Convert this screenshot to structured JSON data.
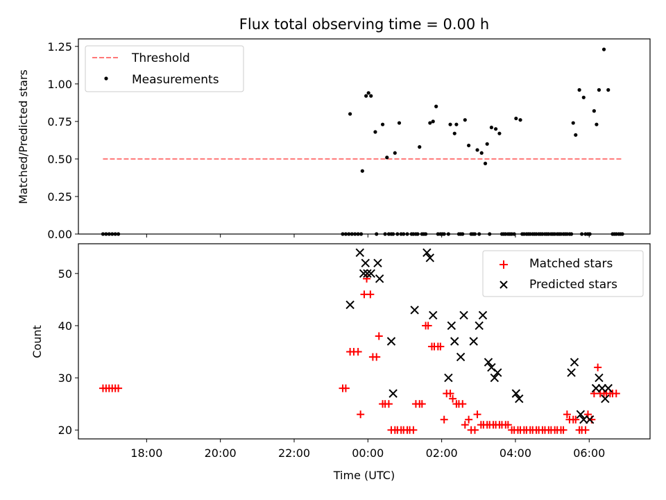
{
  "chart_data": [
    {
      "type": "scatter",
      "title": "Flux total observing time = 0.00 h",
      "xlabel": "",
      "ylabel": "Matched/Predicted stars",
      "ylim": [
        0,
        1.3
      ],
      "yticks": [
        0.0,
        0.25,
        0.5,
        0.75,
        1.0,
        1.25
      ],
      "ytick_labels": [
        "0.00",
        "0.25",
        "0.50",
        "0.75",
        "1.00",
        "1.25"
      ],
      "xlim": [
        "16:09",
        "07:39"
      ],
      "legend_position": "upper left",
      "series": [
        {
          "name": "Threshold",
          "kind": "dashed-line",
          "color": "#ff7777",
          "y": 0.5,
          "x_range": [
            "16:49",
            "06:54"
          ]
        },
        {
          "name": "Measurements",
          "kind": "points",
          "color": "#000000",
          "points": [
            [
              "16:49",
              0
            ],
            [
              "16:54",
              0
            ],
            [
              "16:59",
              0
            ],
            [
              "17:04",
              0
            ],
            [
              "17:09",
              0
            ],
            [
              "17:14",
              0
            ],
            [
              "23:19",
              0
            ],
            [
              "23:24",
              0
            ],
            [
              "23:29",
              0
            ],
            [
              "23:31",
              0.8
            ],
            [
              "23:34",
              0
            ],
            [
              "23:39",
              0
            ],
            [
              "23:44",
              0
            ],
            [
              "23:49",
              0
            ],
            [
              "23:51",
              0.42
            ],
            [
              "23:57",
              0.92
            ],
            [
              "00:01",
              0.94
            ],
            [
              "00:05",
              0.92
            ],
            [
              "00:12",
              0.68
            ],
            [
              "00:14",
              0
            ],
            [
              "00:24",
              0.73
            ],
            [
              "00:28",
              0
            ],
            [
              "00:31",
              0.51
            ],
            [
              "00:34",
              0
            ],
            [
              "00:38",
              0
            ],
            [
              "00:41",
              0
            ],
            [
              "00:44",
              0.54
            ],
            [
              "00:48",
              0
            ],
            [
              "00:51",
              0.74
            ],
            [
              "00:54",
              0
            ],
            [
              "00:58",
              0
            ],
            [
              "01:04",
              0
            ],
            [
              "01:11",
              0
            ],
            [
              "01:14",
              0
            ],
            [
              "01:18",
              0
            ],
            [
              "01:21",
              0
            ],
            [
              "01:24",
              0.58
            ],
            [
              "01:28",
              0
            ],
            [
              "01:31",
              0
            ],
            [
              "01:34",
              0
            ],
            [
              "01:41",
              0.74
            ],
            [
              "01:46",
              0.75
            ],
            [
              "01:51",
              0.85
            ],
            [
              "01:54",
              0
            ],
            [
              "01:58",
              0
            ],
            [
              "02:01",
              0
            ],
            [
              "02:04",
              0
            ],
            [
              "02:11",
              0
            ],
            [
              "02:14",
              0.73
            ],
            [
              "02:21",
              0.67
            ],
            [
              "02:24",
              0.73
            ],
            [
              "02:28",
              0
            ],
            [
              "02:31",
              0
            ],
            [
              "02:34",
              0
            ],
            [
              "02:38",
              0.76
            ],
            [
              "02:44",
              0.59
            ],
            [
              "02:48",
              0
            ],
            [
              "02:51",
              0
            ],
            [
              "02:54",
              0
            ],
            [
              "02:58",
              0.56
            ],
            [
              "03:01",
              0
            ],
            [
              "03:05",
              0.54
            ],
            [
              "03:11",
              0.47
            ],
            [
              "03:14",
              0.6
            ],
            [
              "03:18",
              0
            ],
            [
              "03:21",
              0.71
            ],
            [
              "03:28",
              0.7
            ],
            [
              "03:34",
              0.67
            ],
            [
              "03:38",
              0
            ],
            [
              "03:41",
              0
            ],
            [
              "03:44",
              0
            ],
            [
              "03:48",
              0
            ],
            [
              "03:51",
              0
            ],
            [
              "03:54",
              0
            ],
            [
              "03:58",
              0
            ],
            [
              "04:01",
              0.77
            ],
            [
              "04:08",
              0.76
            ],
            [
              "04:11",
              0
            ],
            [
              "04:14",
              0
            ],
            [
              "04:18",
              0
            ],
            [
              "04:21",
              0
            ],
            [
              "04:24",
              0
            ],
            [
              "04:28",
              0
            ],
            [
              "04:31",
              0
            ],
            [
              "04:34",
              0
            ],
            [
              "04:38",
              0
            ],
            [
              "04:41",
              0
            ],
            [
              "04:44",
              0
            ],
            [
              "04:48",
              0
            ],
            [
              "04:51",
              0
            ],
            [
              "04:54",
              0
            ],
            [
              "04:58",
              0
            ],
            [
              "05:01",
              0
            ],
            [
              "05:04",
              0
            ],
            [
              "05:08",
              0
            ],
            [
              "05:11",
              0
            ],
            [
              "05:14",
              0
            ],
            [
              "05:18",
              0
            ],
            [
              "05:21",
              0
            ],
            [
              "05:24",
              0
            ],
            [
              "05:28",
              0
            ],
            [
              "05:31",
              0
            ],
            [
              "05:34",
              0.74
            ],
            [
              "05:38",
              0.66
            ],
            [
              "05:44",
              0.96
            ],
            [
              "05:48",
              0
            ],
            [
              "05:51",
              0.91
            ],
            [
              "05:54",
              0
            ],
            [
              "05:58",
              0
            ],
            [
              "06:01",
              0
            ],
            [
              "06:08",
              0.82
            ],
            [
              "06:12",
              0.73
            ],
            [
              "06:16",
              0.96
            ],
            [
              "06:24",
              1.23
            ],
            [
              "06:31",
              0.96
            ],
            [
              "06:38",
              0
            ],
            [
              "06:41",
              0
            ],
            [
              "06:44",
              0
            ],
            [
              "06:48",
              0
            ],
            [
              "06:51",
              0
            ],
            [
              "06:54",
              0
            ]
          ]
        }
      ]
    },
    {
      "type": "scatter",
      "title": "",
      "xlabel": "Time (UTC)",
      "ylabel": "Count",
      "ylim": [
        18.3,
        55.7
      ],
      "yticks": [
        20,
        30,
        40,
        50
      ],
      "ytick_labels": [
        "20",
        "30",
        "40",
        "50"
      ],
      "xlim": [
        "16:09",
        "07:39"
      ],
      "xticks": [
        "18:00",
        "20:00",
        "22:00",
        "00:00",
        "02:00",
        "04:00",
        "06:00"
      ],
      "legend_position": "upper right",
      "series": [
        {
          "name": "Matched stars",
          "kind": "plus",
          "color": "#ff0000",
          "points": [
            [
              "16:49",
              28
            ],
            [
              "16:54",
              28
            ],
            [
              "16:59",
              28
            ],
            [
              "17:04",
              28
            ],
            [
              "17:09",
              28
            ],
            [
              "17:14",
              28
            ],
            [
              "23:19",
              28
            ],
            [
              "23:24",
              28
            ],
            [
              "23:31",
              35
            ],
            [
              "23:37",
              35
            ],
            [
              "23:44",
              35
            ],
            [
              "23:48",
              23
            ],
            [
              "23:54",
              46
            ],
            [
              "23:58",
              49
            ],
            [
              "00:04",
              46
            ],
            [
              "00:08",
              34
            ],
            [
              "00:14",
              34
            ],
            [
              "00:18",
              38
            ],
            [
              "00:24",
              25
            ],
            [
              "00:28",
              25
            ],
            [
              "00:34",
              25
            ],
            [
              "00:38",
              20
            ],
            [
              "00:44",
              20
            ],
            [
              "00:48",
              20
            ],
            [
              "00:54",
              20
            ],
            [
              "00:58",
              20
            ],
            [
              "01:04",
              20
            ],
            [
              "01:08",
              20
            ],
            [
              "01:14",
              20
            ],
            [
              "01:18",
              25
            ],
            [
              "01:24",
              25
            ],
            [
              "01:28",
              25
            ],
            [
              "01:34",
              40
            ],
            [
              "01:38",
              40
            ],
            [
              "01:44",
              36
            ],
            [
              "01:48",
              36
            ],
            [
              "01:54",
              36
            ],
            [
              "01:58",
              36
            ],
            [
              "02:04",
              22
            ],
            [
              "02:08",
              27
            ],
            [
              "02:14",
              27
            ],
            [
              "02:18",
              26
            ],
            [
              "02:24",
              25
            ],
            [
              "02:28",
              25
            ],
            [
              "02:34",
              25
            ],
            [
              "02:38",
              21
            ],
            [
              "02:44",
              22
            ],
            [
              "02:48",
              20
            ],
            [
              "02:54",
              20
            ],
            [
              "02:58",
              23
            ],
            [
              "03:04",
              21
            ],
            [
              "03:08",
              21
            ],
            [
              "03:14",
              21
            ],
            [
              "03:18",
              21
            ],
            [
              "03:24",
              21
            ],
            [
              "03:28",
              21
            ],
            [
              "03:34",
              21
            ],
            [
              "03:38",
              21
            ],
            [
              "03:44",
              21
            ],
            [
              "03:48",
              21
            ],
            [
              "03:54",
              20
            ],
            [
              "03:58",
              20
            ],
            [
              "04:04",
              20
            ],
            [
              "04:08",
              20
            ],
            [
              "04:14",
              20
            ],
            [
              "04:18",
              20
            ],
            [
              "04:24",
              20
            ],
            [
              "04:28",
              20
            ],
            [
              "04:34",
              20
            ],
            [
              "04:38",
              20
            ],
            [
              "04:44",
              20
            ],
            [
              "04:48",
              20
            ],
            [
              "04:54",
              20
            ],
            [
              "04:58",
              20
            ],
            [
              "05:04",
              20
            ],
            [
              "05:08",
              20
            ],
            [
              "05:14",
              20
            ],
            [
              "05:18",
              20
            ],
            [
              "05:24",
              23
            ],
            [
              "05:28",
              22
            ],
            [
              "05:34",
              22
            ],
            [
              "05:38",
              22
            ],
            [
              "05:44",
              20
            ],
            [
              "05:48",
              20
            ],
            [
              "05:54",
              20
            ],
            [
              "05:58",
              23
            ],
            [
              "06:04",
              22
            ],
            [
              "06:08",
              27
            ],
            [
              "06:14",
              32
            ],
            [
              "06:18",
              27
            ],
            [
              "06:24",
              27
            ],
            [
              "06:28",
              27
            ],
            [
              "06:34",
              27
            ],
            [
              "06:38",
              27
            ],
            [
              "06:44",
              27
            ]
          ]
        },
        {
          "name": "Predicted stars",
          "kind": "x",
          "color": "#000000",
          "points": [
            [
              "23:31",
              44
            ],
            [
              "23:47",
              54
            ],
            [
              "23:53",
              50
            ],
            [
              "23:56",
              52
            ],
            [
              "23:59",
              50
            ],
            [
              "00:05",
              50
            ],
            [
              "00:16",
              52
            ],
            [
              "00:19",
              49
            ],
            [
              "00:38",
              37
            ],
            [
              "00:41",
              27
            ],
            [
              "01:16",
              43
            ],
            [
              "01:36",
              54
            ],
            [
              "01:41",
              53
            ],
            [
              "01:46",
              42
            ],
            [
              "02:11",
              30
            ],
            [
              "02:16",
              40
            ],
            [
              "02:21",
              37
            ],
            [
              "02:31",
              34
            ],
            [
              "02:36",
              42
            ],
            [
              "02:52",
              37
            ],
            [
              "03:01",
              40
            ],
            [
              "03:07",
              42
            ],
            [
              "03:16",
              33
            ],
            [
              "03:21",
              32
            ],
            [
              "03:26",
              30
            ],
            [
              "03:31",
              31
            ],
            [
              "04:01",
              27
            ],
            [
              "04:06",
              26
            ],
            [
              "05:31",
              31
            ],
            [
              "05:36",
              33
            ],
            [
              "05:46",
              23
            ],
            [
              "05:51",
              22
            ],
            [
              "06:01",
              22
            ],
            [
              "06:11",
              28
            ],
            [
              "06:16",
              30
            ],
            [
              "06:21",
              28
            ],
            [
              "06:26",
              26
            ],
            [
              "06:31",
              28
            ]
          ]
        }
      ]
    }
  ]
}
